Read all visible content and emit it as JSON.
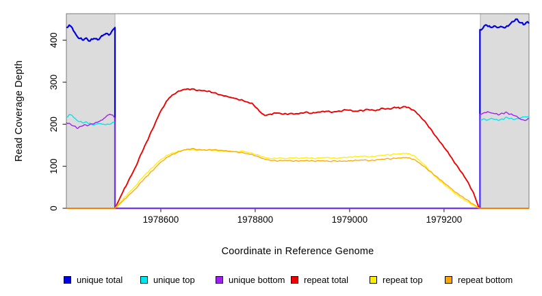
{
  "figure": {
    "background": "#ffffff",
    "box_color": "#7a7a7a",
    "tick_color": "#333333",
    "tick_label_color": "#000000",
    "shaded_region_fill": "#DCDCDC",
    "shaded_region_border": "#ABABAB"
  },
  "legend": {
    "items": [
      {
        "label": "unique total",
        "color": "#0000E0"
      },
      {
        "label": "unique top",
        "color": "#00E5EE"
      },
      {
        "label": "unique bottom",
        "color": "#A020F0"
      },
      {
        "label": "repeat total",
        "color": "#EE0000"
      },
      {
        "label": "repeat top",
        "color": "#FFEE00"
      },
      {
        "label": "repeat bottom",
        "color": "#FFA500"
      }
    ]
  },
  "chart_data": {
    "type": "line",
    "title": "",
    "xlabel": "Coordinate in Reference Genome",
    "ylabel": "Read Coverage Depth",
    "xlim": [
      1978400,
      1979380
    ],
    "ylim": [
      0,
      463
    ],
    "x_ticks": [
      1978600,
      1978800,
      1979000,
      1979200
    ],
    "y_ticks": [
      0,
      100,
      200,
      300,
      400
    ],
    "grid": false,
    "legend_position": "bottom",
    "shaded_regions": [
      {
        "name": "unique-region-left",
        "x0": 1978400,
        "x1": 1978503
      },
      {
        "name": "unique-region-right",
        "x0": 1979277,
        "x1": 1979380
      }
    ],
    "series": [
      {
        "name": "unique total",
        "color": "#0000E0",
        "noise": 3.5,
        "points": [
          [
            1978400,
            430
          ],
          [
            1978406,
            436
          ],
          [
            1978412,
            430
          ],
          [
            1978420,
            414
          ],
          [
            1978428,
            404
          ],
          [
            1978436,
            400
          ],
          [
            1978444,
            403
          ],
          [
            1978450,
            398
          ],
          [
            1978458,
            404
          ],
          [
            1978466,
            401
          ],
          [
            1978476,
            410
          ],
          [
            1978484,
            416
          ],
          [
            1978490,
            412
          ],
          [
            1978498,
            424
          ],
          [
            1978503,
            430
          ],
          [
            1978503,
            0
          ],
          [
            1979276,
            0
          ],
          [
            1979276,
            425
          ],
          [
            1979282,
            428
          ],
          [
            1979290,
            436
          ],
          [
            1979298,
            431
          ],
          [
            1979306,
            434
          ],
          [
            1979314,
            430
          ],
          [
            1979322,
            432
          ],
          [
            1979330,
            430
          ],
          [
            1979338,
            436
          ],
          [
            1979346,
            444
          ],
          [
            1979352,
            450
          ],
          [
            1979360,
            442
          ],
          [
            1979368,
            437
          ],
          [
            1979374,
            442
          ],
          [
            1979380,
            440
          ]
        ]
      },
      {
        "name": "unique top",
        "color": "#00E5EE",
        "noise": 2.5,
        "points": [
          [
            1978400,
            216
          ],
          [
            1978406,
            223
          ],
          [
            1978412,
            221
          ],
          [
            1978420,
            212
          ],
          [
            1978428,
            206
          ],
          [
            1978436,
            203
          ],
          [
            1978444,
            204
          ],
          [
            1978452,
            201
          ],
          [
            1978460,
            199
          ],
          [
            1978468,
            202
          ],
          [
            1978476,
            200
          ],
          [
            1978484,
            199
          ],
          [
            1978492,
            200
          ],
          [
            1978503,
            206
          ],
          [
            1978503,
            0
          ],
          [
            1979276,
            0
          ],
          [
            1979276,
            210
          ],
          [
            1979284,
            213
          ],
          [
            1979292,
            210
          ],
          [
            1979300,
            214
          ],
          [
            1979308,
            211
          ],
          [
            1979316,
            209
          ],
          [
            1979324,
            212
          ],
          [
            1979332,
            217
          ],
          [
            1979340,
            214
          ],
          [
            1979348,
            211
          ],
          [
            1979356,
            213
          ],
          [
            1979364,
            216
          ],
          [
            1979372,
            218
          ],
          [
            1979380,
            216
          ]
        ]
      },
      {
        "name": "unique bottom",
        "color": "#A020F0",
        "noise": 2.5,
        "points": [
          [
            1978400,
            204
          ],
          [
            1978408,
            201
          ],
          [
            1978416,
            196
          ],
          [
            1978424,
            190
          ],
          [
            1978430,
            195
          ],
          [
            1978438,
            199
          ],
          [
            1978446,
            197
          ],
          [
            1978452,
            201
          ],
          [
            1978460,
            203
          ],
          [
            1978468,
            206
          ],
          [
            1978476,
            210
          ],
          [
            1978484,
            218
          ],
          [
            1978492,
            224
          ],
          [
            1978498,
            222
          ],
          [
            1978503,
            214
          ],
          [
            1978503,
            0
          ],
          [
            1979276,
            0
          ],
          [
            1979276,
            224
          ],
          [
            1979284,
            227
          ],
          [
            1979292,
            230
          ],
          [
            1979300,
            227
          ],
          [
            1979308,
            225
          ],
          [
            1979316,
            222
          ],
          [
            1979324,
            226
          ],
          [
            1979332,
            229
          ],
          [
            1979340,
            224
          ],
          [
            1979348,
            221
          ],
          [
            1979356,
            217
          ],
          [
            1979364,
            211
          ],
          [
            1979372,
            209
          ],
          [
            1979380,
            213
          ]
        ]
      },
      {
        "name": "repeat total",
        "color": "#EE0000",
        "noise": 2.2,
        "points": [
          [
            1978400,
            0
          ],
          [
            1978503,
            0
          ],
          [
            1978520,
            40
          ],
          [
            1978545,
            95
          ],
          [
            1978570,
            158
          ],
          [
            1978600,
            232
          ],
          [
            1978618,
            263
          ],
          [
            1978635,
            277
          ],
          [
            1978650,
            283
          ],
          [
            1978665,
            284
          ],
          [
            1978680,
            281
          ],
          [
            1978695,
            279
          ],
          [
            1978710,
            275
          ],
          [
            1978730,
            269
          ],
          [
            1978750,
            263
          ],
          [
            1978775,
            256
          ],
          [
            1978795,
            248
          ],
          [
            1978808,
            232
          ],
          [
            1978820,
            221
          ],
          [
            1978832,
            224
          ],
          [
            1978845,
            227
          ],
          [
            1978860,
            224
          ],
          [
            1978875,
            226
          ],
          [
            1978890,
            225
          ],
          [
            1978905,
            228
          ],
          [
            1978920,
            226
          ],
          [
            1978935,
            229
          ],
          [
            1978950,
            231
          ],
          [
            1978965,
            229
          ],
          [
            1978980,
            231
          ],
          [
            1978995,
            234
          ],
          [
            1979010,
            231
          ],
          [
            1979025,
            233
          ],
          [
            1979040,
            235
          ],
          [
            1979055,
            232
          ],
          [
            1979070,
            238
          ],
          [
            1979085,
            236
          ],
          [
            1979095,
            241
          ],
          [
            1979105,
            238
          ],
          [
            1979115,
            242
          ],
          [
            1979125,
            240
          ],
          [
            1979135,
            234
          ],
          [
            1979150,
            218
          ],
          [
            1979165,
            198
          ],
          [
            1979185,
            168
          ],
          [
            1979205,
            138
          ],
          [
            1979225,
            105
          ],
          [
            1979245,
            72
          ],
          [
            1979262,
            38
          ],
          [
            1979273,
            4
          ],
          [
            1979276,
            0
          ],
          [
            1979380,
            0
          ]
        ]
      },
      {
        "name": "repeat top",
        "color": "#FFEE00",
        "noise": 1.8,
        "points": [
          [
            1978400,
            0
          ],
          [
            1978503,
            0
          ],
          [
            1978520,
            22
          ],
          [
            1978545,
            52
          ],
          [
            1978570,
            84
          ],
          [
            1978600,
            116
          ],
          [
            1978618,
            128
          ],
          [
            1978635,
            135
          ],
          [
            1978650,
            139
          ],
          [
            1978665,
            140
          ],
          [
            1978680,
            138
          ],
          [
            1978695,
            139
          ],
          [
            1978710,
            137
          ],
          [
            1978730,
            136
          ],
          [
            1978750,
            134
          ],
          [
            1978775,
            136
          ],
          [
            1978795,
            130
          ],
          [
            1978808,
            126
          ],
          [
            1978820,
            121
          ],
          [
            1978835,
            118
          ],
          [
            1978850,
            120
          ],
          [
            1978865,
            118
          ],
          [
            1978880,
            120
          ],
          [
            1978895,
            119
          ],
          [
            1978910,
            121
          ],
          [
            1978925,
            118
          ],
          [
            1978940,
            120
          ],
          [
            1978955,
            121
          ],
          [
            1978970,
            119
          ],
          [
            1978985,
            121
          ],
          [
            1979000,
            122
          ],
          [
            1979015,
            123
          ],
          [
            1979030,
            124
          ],
          [
            1979045,
            123
          ],
          [
            1979060,
            125
          ],
          [
            1979075,
            126
          ],
          [
            1979090,
            128
          ],
          [
            1979105,
            130
          ],
          [
            1979120,
            131
          ],
          [
            1979135,
            126
          ],
          [
            1979150,
            112
          ],
          [
            1979165,
            95
          ],
          [
            1979185,
            72
          ],
          [
            1979205,
            52
          ],
          [
            1979225,
            34
          ],
          [
            1979245,
            18
          ],
          [
            1979262,
            7
          ],
          [
            1979273,
            1
          ],
          [
            1979276,
            0
          ],
          [
            1979380,
            0
          ]
        ]
      },
      {
        "name": "repeat bottom",
        "color": "#FFA500",
        "noise": 1.8,
        "points": [
          [
            1978400,
            0
          ],
          [
            1978503,
            0
          ],
          [
            1978520,
            18
          ],
          [
            1978545,
            45
          ],
          [
            1978570,
            76
          ],
          [
            1978600,
            110
          ],
          [
            1978618,
            124
          ],
          [
            1978635,
            133
          ],
          [
            1978650,
            139
          ],
          [
            1978665,
            142
          ],
          [
            1978680,
            140
          ],
          [
            1978695,
            138
          ],
          [
            1978710,
            139
          ],
          [
            1978730,
            138
          ],
          [
            1978750,
            135
          ],
          [
            1978775,
            132
          ],
          [
            1978795,
            127
          ],
          [
            1978808,
            122
          ],
          [
            1978820,
            117
          ],
          [
            1978835,
            114
          ],
          [
            1978850,
            113
          ],
          [
            1978865,
            114
          ],
          [
            1978880,
            112
          ],
          [
            1978895,
            113
          ],
          [
            1978910,
            114
          ],
          [
            1978925,
            112
          ],
          [
            1978940,
            113
          ],
          [
            1978955,
            112
          ],
          [
            1978970,
            113
          ],
          [
            1978985,
            112
          ],
          [
            1979000,
            113
          ],
          [
            1979015,
            114
          ],
          [
            1979030,
            115
          ],
          [
            1979045,
            114
          ],
          [
            1979060,
            116
          ],
          [
            1979075,
            117
          ],
          [
            1979090,
            118
          ],
          [
            1979105,
            120
          ],
          [
            1979120,
            121
          ],
          [
            1979135,
            117
          ],
          [
            1979150,
            106
          ],
          [
            1979165,
            92
          ],
          [
            1979185,
            75
          ],
          [
            1979205,
            56
          ],
          [
            1979225,
            38
          ],
          [
            1979245,
            22
          ],
          [
            1979262,
            10
          ],
          [
            1979273,
            2
          ],
          [
            1979276,
            0
          ],
          [
            1979380,
            0
          ]
        ]
      }
    ]
  }
}
